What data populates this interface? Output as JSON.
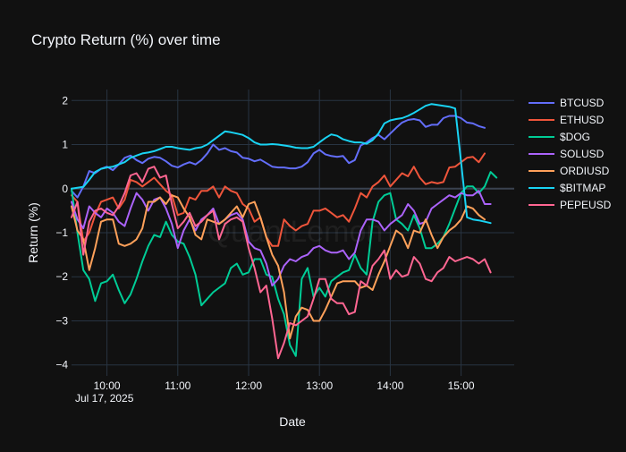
{
  "chart_data": {
    "type": "line",
    "title": "Crypto Return (%) over time",
    "xlabel": "Date",
    "ylabel": "Return (%)",
    "watermark": "QuantLemon",
    "x_ticks": [
      "10:00",
      "11:00",
      "12:00",
      "13:00",
      "14:00",
      "15:00"
    ],
    "x_date_label": "Jul 17, 2025",
    "y_ticks": [
      2,
      1,
      0,
      -1,
      -2,
      -3,
      -4
    ],
    "ylim": [
      -4.25,
      2.25
    ],
    "xlim_hours": [
      9.5,
      15.75
    ],
    "grid": true,
    "legend": "right",
    "x_start": "09:30",
    "x_step_minutes": 5,
    "series": [
      {
        "name": "BTCUSD",
        "color": "#636efa",
        "values": [
          -0.05,
          -0.2,
          0.05,
          0.4,
          0.35,
          0.45,
          0.5,
          0.42,
          0.55,
          0.7,
          0.75,
          0.65,
          0.58,
          0.68,
          0.72,
          0.7,
          0.62,
          0.52,
          0.48,
          0.55,
          0.6,
          0.55,
          0.65,
          0.8,
          1.0,
          0.88,
          0.92,
          0.85,
          0.82,
          0.7,
          0.68,
          0.62,
          0.66,
          0.58,
          0.5,
          0.48,
          0.48,
          0.46,
          0.46,
          0.5,
          0.6,
          0.8,
          0.88,
          0.78,
          0.74,
          0.72,
          0.74,
          0.58,
          0.65,
          0.98,
          1.05,
          1.15,
          1.22,
          1.12,
          1.25,
          1.38,
          1.5,
          1.56,
          1.58,
          1.55,
          1.4,
          1.45,
          1.45,
          1.6,
          1.65,
          1.65,
          1.6,
          1.5,
          1.48,
          1.42,
          1.38
        ]
      },
      {
        "name": "ETHUSD",
        "color": "#ef553b",
        "values": [
          -0.15,
          -0.3,
          -1.2,
          -1.0,
          -0.6,
          -0.3,
          -0.25,
          -0.2,
          -0.45,
          -0.25,
          0.2,
          0.15,
          0.05,
          0.15,
          0.25,
          0.1,
          -0.05,
          -0.15,
          -0.6,
          -0.55,
          -0.2,
          -0.25,
          -0.05,
          -0.05,
          0.05,
          -0.2,
          0.05,
          -0.05,
          -0.1,
          -0.35,
          -0.45,
          -0.75,
          -0.65,
          -1.1,
          -1.3,
          -1.3,
          -0.7,
          -0.85,
          -0.95,
          -0.85,
          -0.8,
          -0.5,
          -0.5,
          -0.45,
          -0.55,
          -0.65,
          -0.6,
          -0.75,
          -0.45,
          -0.1,
          -0.2,
          0.05,
          0.15,
          0.3,
          0.05,
          0.2,
          0.35,
          0.28,
          0.5,
          0.25,
          0.1,
          0.15,
          0.12,
          0.15,
          0.48,
          0.5,
          0.6,
          0.7,
          0.72,
          0.6,
          0.8
        ]
      },
      {
        "name": "$DOG",
        "color": "#00cc96",
        "values": [
          0.0,
          -1.0,
          -1.85,
          -2.05,
          -2.55,
          -2.15,
          -2.1,
          -1.95,
          -2.3,
          -2.6,
          -2.4,
          -2.05,
          -1.65,
          -1.3,
          -1.05,
          -1.1,
          -0.75,
          -1.05,
          -1.2,
          -1.25,
          -1.55,
          -1.95,
          -2.65,
          -2.5,
          -2.35,
          -2.25,
          -2.15,
          -1.8,
          -1.7,
          -1.95,
          -1.9,
          -1.6,
          -1.6,
          -1.95,
          -2.0,
          -2.5,
          -2.85,
          -3.55,
          -3.8,
          -2.05,
          -1.8,
          -2.45,
          -2.25,
          -2.45,
          -2.1,
          -2.0,
          -1.9,
          -1.85,
          -1.5,
          -1.8,
          -1.95,
          -0.75,
          -0.3,
          -0.15,
          -0.1,
          -0.7,
          -0.8,
          -0.95,
          -0.6,
          -0.9,
          -1.35,
          -1.35,
          -1.25,
          -1.1,
          -0.8,
          -0.45,
          -0.1,
          0.05,
          0.05,
          -0.1,
          0.05,
          0.38,
          0.25
        ]
      },
      {
        "name": "SOLUSD",
        "color": "#ab63fa",
        "values": [
          -0.3,
          -0.7,
          -0.9,
          -0.4,
          -0.55,
          -0.65,
          -0.45,
          -0.55,
          -0.75,
          -0.85,
          -0.45,
          -0.1,
          -0.25,
          -0.5,
          -0.25,
          -0.2,
          -0.45,
          -0.8,
          -1.35,
          -0.95,
          -0.7,
          -0.95,
          -0.7,
          -0.6,
          -0.45,
          -0.8,
          -0.7,
          -0.6,
          -0.55,
          -0.7,
          -1.2,
          -1.35,
          -1.4,
          -1.7,
          -2.2,
          -2.05,
          -1.75,
          -1.6,
          -1.65,
          -1.55,
          -1.5,
          -1.35,
          -1.3,
          -1.4,
          -1.45,
          -1.45,
          -1.4,
          -1.6,
          -1.45,
          -0.95,
          -0.7,
          -0.7,
          -0.75,
          -0.95,
          -0.8,
          -0.7,
          -0.6,
          -0.35,
          -0.5,
          -0.8,
          -0.75,
          -0.45,
          -0.35,
          -0.25,
          -0.15,
          -0.2,
          -0.1,
          -0.15,
          -0.15,
          -0.05,
          -0.35,
          -0.35
        ]
      },
      {
        "name": "ORDIUSD",
        "color": "#ffa15a",
        "values": [
          -0.4,
          -0.95,
          -1.15,
          -1.85,
          -1.35,
          -0.75,
          -0.7,
          -0.7,
          -1.25,
          -1.3,
          -1.25,
          -1.15,
          -0.9,
          -0.3,
          -0.3,
          -0.2,
          -0.35,
          -0.15,
          -0.2,
          -0.45,
          -0.65,
          -1.05,
          -1.15,
          -0.7,
          -0.75,
          -0.8,
          -0.7,
          -0.55,
          -0.4,
          -0.65,
          -0.35,
          -0.3,
          -0.65,
          -1.1,
          -1.5,
          -1.75,
          -2.35,
          -3.4,
          -2.9,
          -2.7,
          -2.75,
          -3.0,
          -3.0,
          -2.75,
          -2.45,
          -2.15,
          -2.1,
          -2.1,
          -2.1,
          -2.25,
          -2.2,
          -2.3,
          -1.95,
          -1.65,
          -1.3,
          -0.95,
          -1.05,
          -1.35,
          -0.95,
          -1.0,
          -0.7,
          -1.05,
          -1.35,
          -1.1,
          -0.95,
          -0.85,
          -0.7,
          -0.4,
          -0.45,
          -0.6,
          -0.7
        ]
      },
      {
        "name": "$BITMAP",
        "color": "#19d3f3",
        "values": [
          0.0,
          0.02,
          0.04,
          0.2,
          0.38,
          0.45,
          0.48,
          0.5,
          0.55,
          0.6,
          0.7,
          0.75,
          0.8,
          0.82,
          0.85,
          0.9,
          0.95,
          0.95,
          0.92,
          0.9,
          0.88,
          0.92,
          0.94,
          1.0,
          1.1,
          1.2,
          1.3,
          1.28,
          1.25,
          1.22,
          1.15,
          1.05,
          1.0,
          1.0,
          1.01,
          1.0,
          0.98,
          0.96,
          0.93,
          0.92,
          0.92,
          0.95,
          1.05,
          1.15,
          1.23,
          1.2,
          1.12,
          1.08,
          1.05,
          1.05,
          1.02,
          1.1,
          1.25,
          1.48,
          1.55,
          1.58,
          1.6,
          1.65,
          1.72,
          1.8,
          1.88,
          1.92,
          1.9,
          1.88,
          1.86,
          1.82,
          0.6,
          -0.65,
          -0.7,
          -0.72,
          -0.75,
          -0.78
        ]
      },
      {
        "name": "PEPEUSD",
        "color": "#ff6692",
        "values": [
          -0.65,
          -0.3,
          -1.5,
          -0.75,
          -0.5,
          -0.45,
          -0.55,
          -0.6,
          -0.4,
          -0.1,
          0.3,
          0.35,
          0.15,
          0.45,
          0.5,
          0.25,
          0.3,
          -0.35,
          -0.9,
          -0.75,
          -0.55,
          -0.85,
          -0.75,
          -0.6,
          -0.5,
          -1.15,
          -0.8,
          -0.7,
          -0.65,
          -0.75,
          -1.35,
          -1.8,
          -2.35,
          -2.2,
          -2.95,
          -3.85,
          -3.5,
          -3.05,
          -3.1,
          -3.0,
          -2.9,
          -2.5,
          -2.05,
          -2.05,
          -2.5,
          -2.6,
          -2.6,
          -2.85,
          -2.8,
          -2.1,
          -2.2,
          -1.75,
          -1.6,
          -1.4,
          -2.05,
          -1.85,
          -2.0,
          -1.95,
          -1.55,
          -1.7,
          -2.05,
          -2.1,
          -1.9,
          -1.8,
          -1.55,
          -1.65,
          -1.6,
          -1.55,
          -1.6,
          -1.7,
          -1.6,
          -1.9
        ]
      }
    ]
  }
}
